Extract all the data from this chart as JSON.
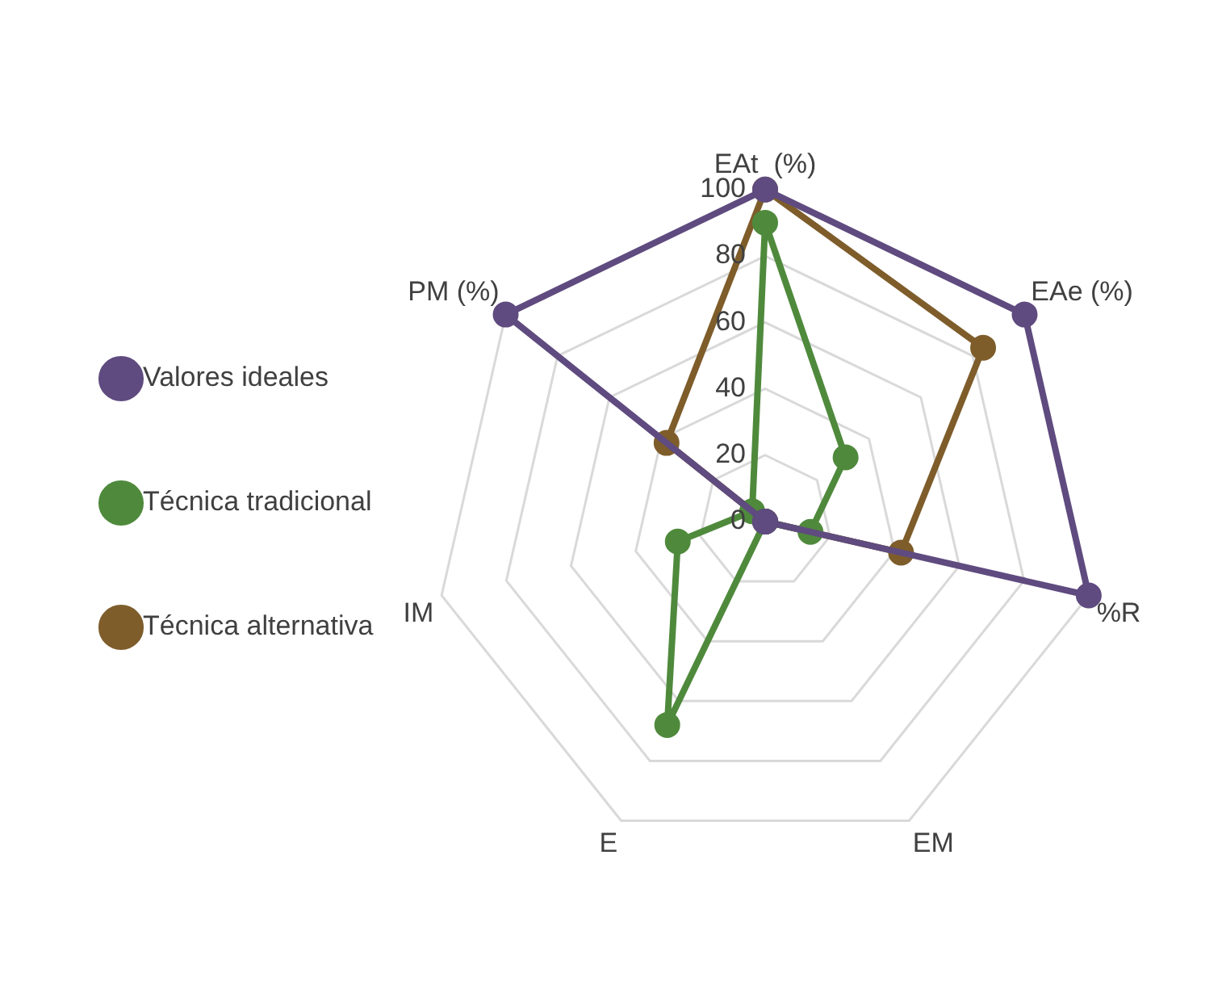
{
  "chart_data": {
    "type": "radar",
    "categories": [
      "EAt  (%)",
      "EAe (%)",
      "%R",
      "EM",
      "E",
      "IM",
      "PM (%)"
    ],
    "series": [
      {
        "name": "Valores ideales",
        "color": "#5f4b7f",
        "values": [
          100,
          100,
          100,
          0,
          0,
          0,
          100
        ]
      },
      {
        "name": "Técnica tradicional",
        "color": "#4f8a3c",
        "values": [
          90,
          31,
          14,
          0,
          68,
          27,
          5
        ]
      },
      {
        "name": "Técnica alternativa",
        "color": "#7e5d2b",
        "values": [
          100,
          84,
          42,
          0,
          0,
          0,
          38
        ]
      }
    ],
    "ylim": [
      0,
      100
    ],
    "yticks": [
      0,
      20,
      40,
      60,
      80,
      100
    ],
    "grid": true,
    "legend": "left",
    "marker": "circle",
    "line_style": "solid"
  }
}
